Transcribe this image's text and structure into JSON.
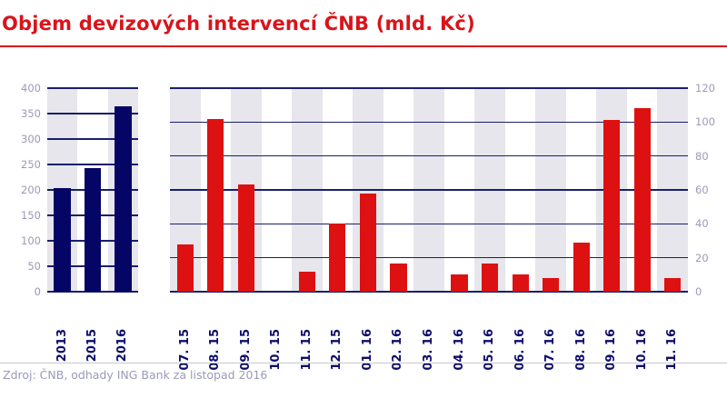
{
  "title": "Objem devizových intervencí ČNB (mld. Kč)",
  "source": "Zdroj: ČNB, odhady ING Bank za listopad 2016",
  "colors": {
    "title": "#d9141b",
    "left_bars": "#050565",
    "right_bars": "#dd1111",
    "band": "#e6e6ec",
    "grid": "#1a1f6e",
    "tick_text": "#9a9ab8",
    "xlabel_text": "#0d0d6b"
  },
  "chart_data": [
    {
      "type": "bar",
      "title": "Objem devizových intervencí ČNB (mld. Kč) – roční",
      "categories": [
        "2013",
        "2015",
        "2016"
      ],
      "values": [
        203,
        243,
        365
      ],
      "ylim": [
        0,
        400
      ],
      "yticks": [
        "0",
        "50",
        "100",
        "150",
        "200",
        "250",
        "300",
        "350",
        "400"
      ],
      "axis": "left",
      "grid": true
    },
    {
      "type": "bar",
      "title": "Objem devizových intervencí ČNB (mld. Kč) – měsíční",
      "categories": [
        "07. 15",
        "08. 15",
        "09. 15",
        "10. 15",
        "11. 15",
        "12. 15",
        "01. 16",
        "02. 16",
        "03. 16",
        "04. 16",
        "05. 16",
        "06. 16",
        "07. 16",
        "08. 16",
        "09. 16",
        "10. 16",
        "11. 16"
      ],
      "values": [
        28,
        102,
        63,
        0,
        12,
        40,
        58,
        16.5,
        0,
        10,
        16.5,
        10,
        8,
        29,
        101,
        108,
        8
      ],
      "ylim": [
        0,
        120
      ],
      "yticks": [
        "0",
        "20",
        "40",
        "60",
        "80",
        "100",
        "120"
      ],
      "axis": "right",
      "grid": true
    }
  ]
}
